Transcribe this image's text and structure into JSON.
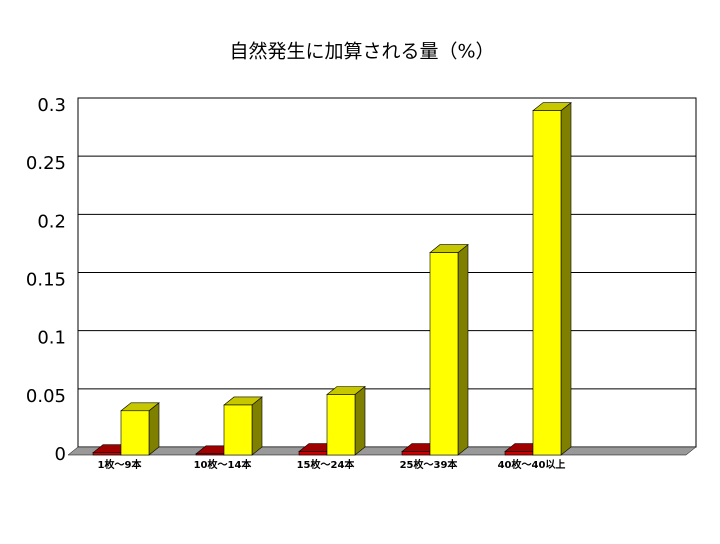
{
  "chart_data": {
    "type": "bar3d",
    "title": "自然発生に加算される量（%）",
    "categories": [
      "1枚～9本",
      "10枚～14本",
      "15枚～24本",
      "25枚～39本",
      "40枚～40以上",
      null
    ],
    "series": [
      {
        "color": "#cc0000",
        "values": [
          0.002,
          0.001,
          0.003,
          0.003,
          0.003,
          null
        ]
      },
      {
        "color": "#ffff00",
        "values": [
          0.038,
          0.043,
          0.052,
          0.174,
          0.296,
          null
        ]
      }
    ],
    "ylim": [
      0,
      0.3
    ],
    "yticks": [
      0,
      0.05,
      0.1,
      0.15,
      0.2,
      0.25,
      0.3
    ],
    "grid": true
  }
}
